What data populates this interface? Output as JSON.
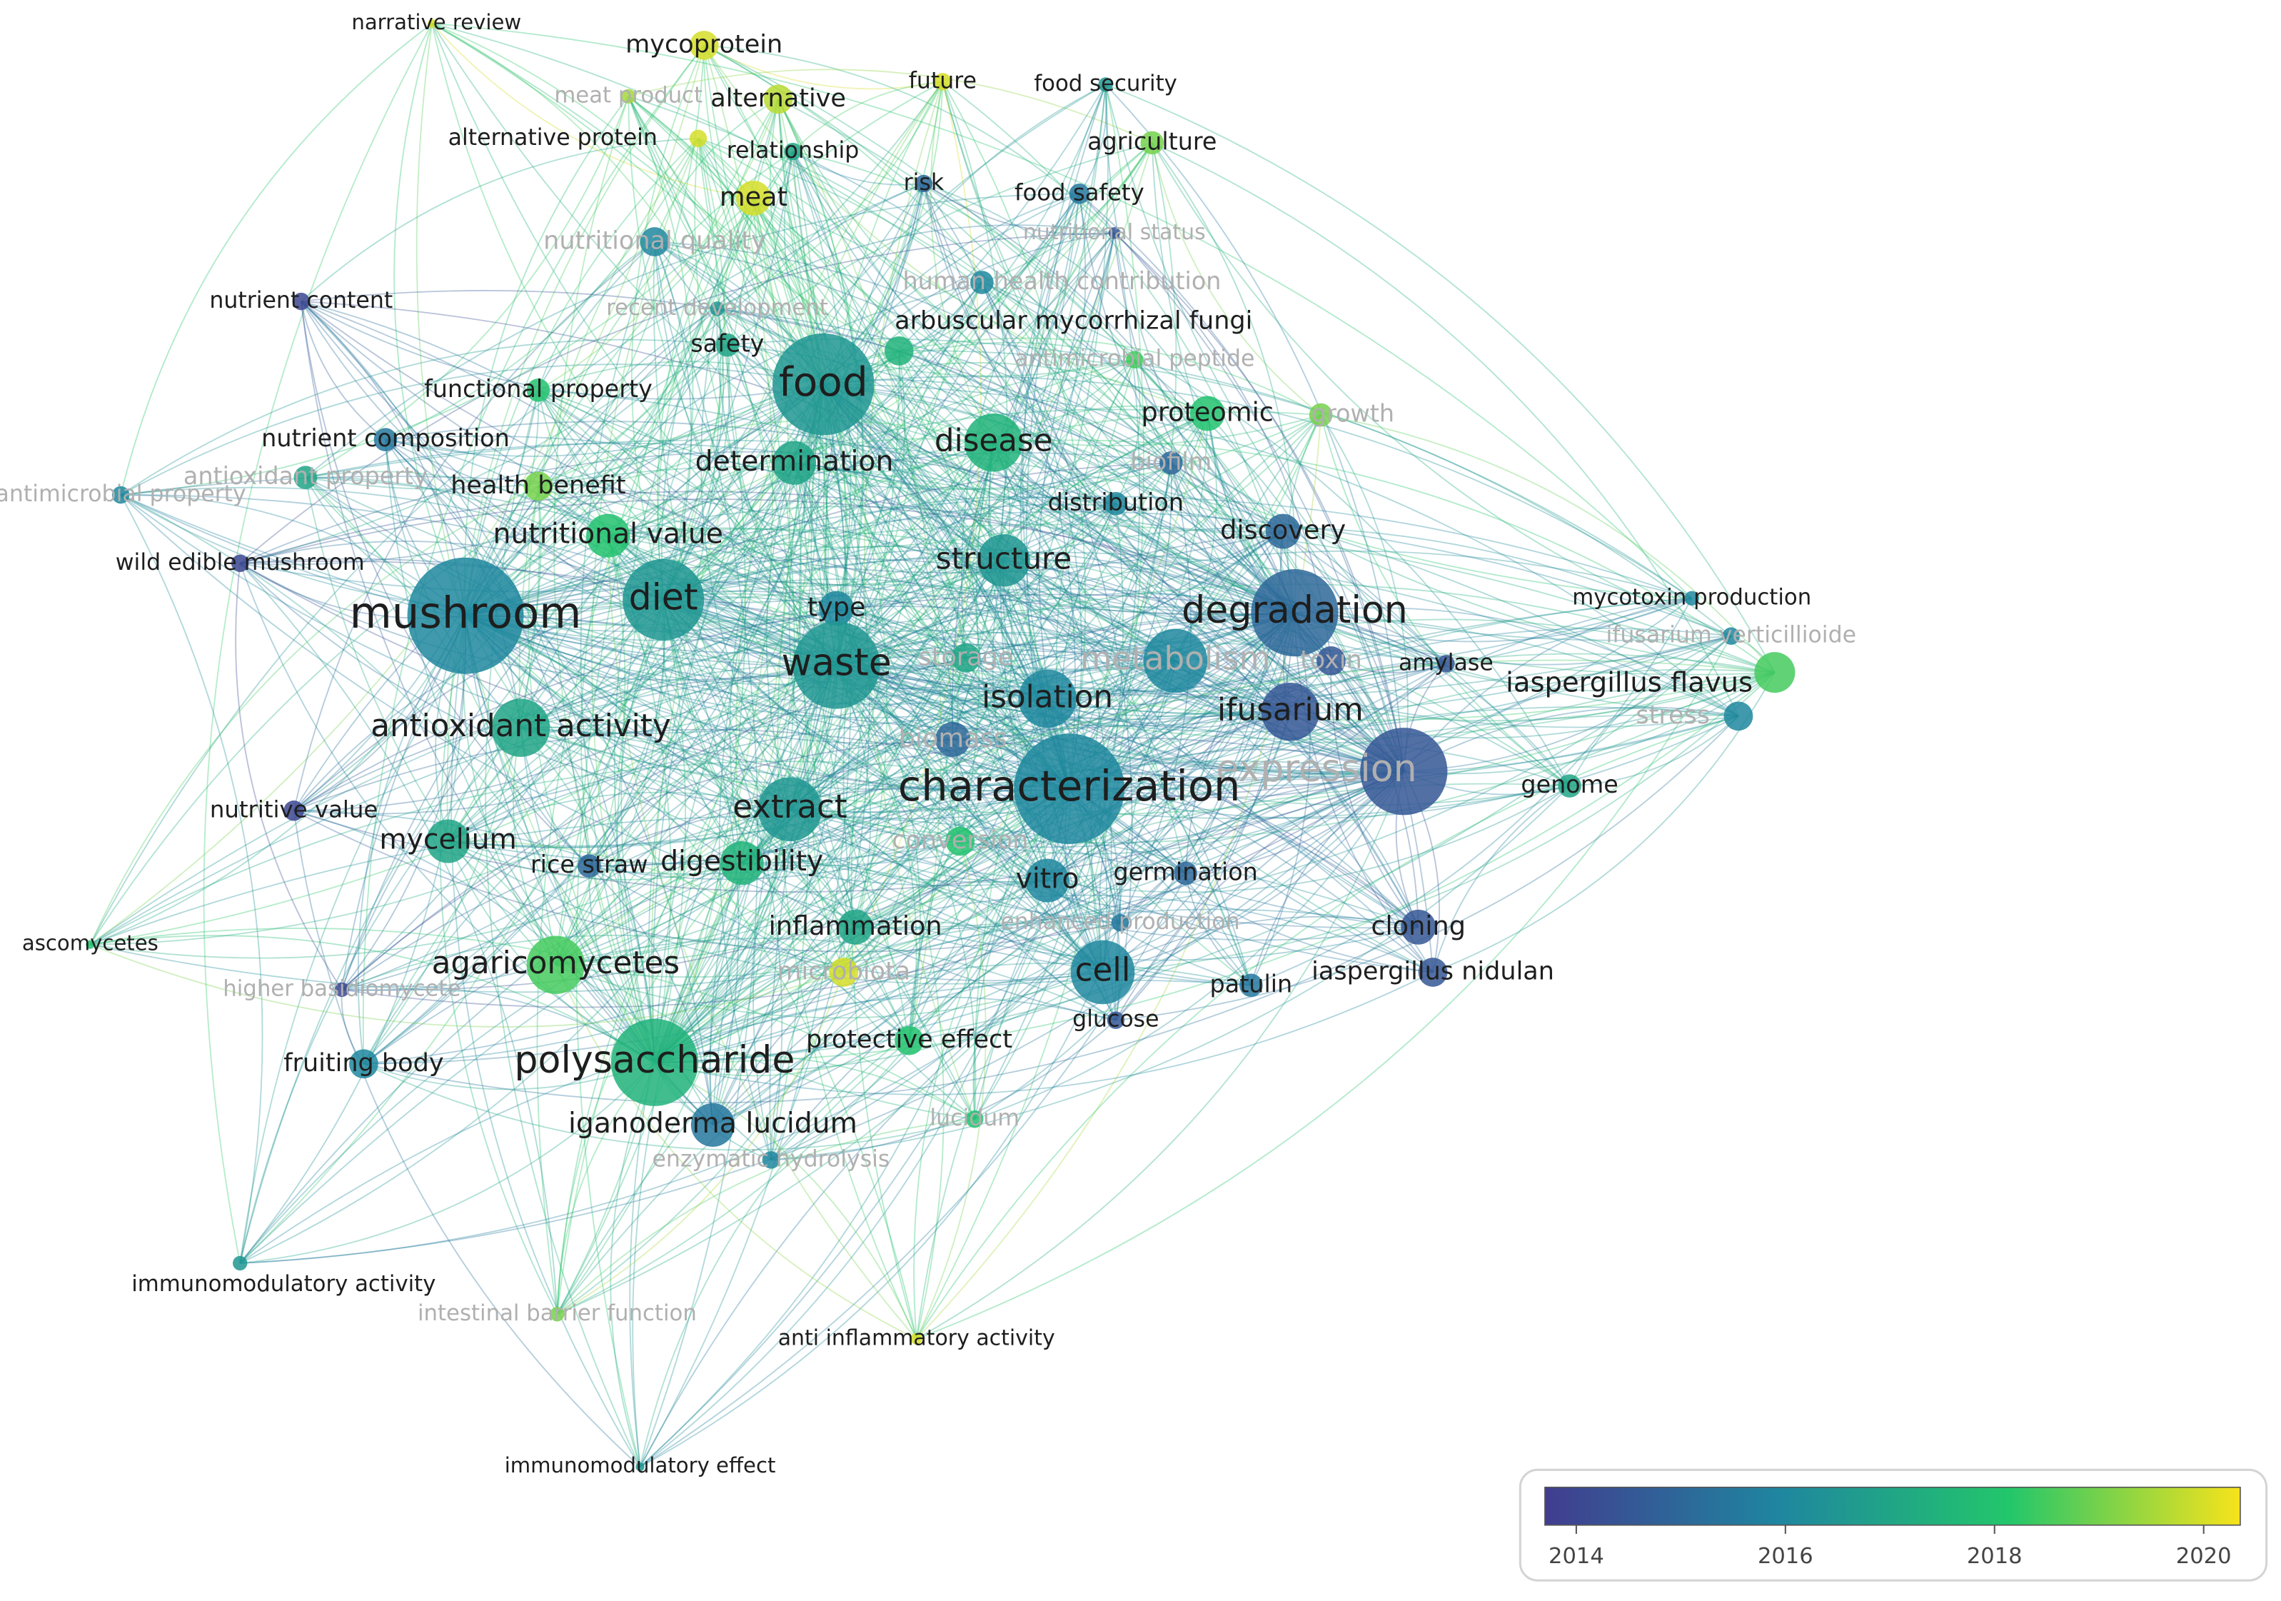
{
  "nodes": [
    {
      "label": "narrative review",
      "year": 2020,
      "weight": 3
    },
    {
      "label": "mycoprotein",
      "year": 2020,
      "weight": 10
    },
    {
      "label": "meat product",
      "year": 2019.5,
      "weight": 5,
      "dim": true
    },
    {
      "label": "alternative",
      "year": 2019.7,
      "weight": 10
    },
    {
      "label": "future",
      "year": 2020,
      "weight": 6
    },
    {
      "label": "food security",
      "year": 2016.5,
      "weight": 5
    },
    {
      "label": "alternative protein",
      "year": 2020,
      "weight": 6
    },
    {
      "label": "relationship",
      "year": 2017,
      "weight": 6
    },
    {
      "label": "agriculture",
      "year": 2019,
      "weight": 8
    },
    {
      "label": "meat",
      "year": 2020,
      "weight": 12
    },
    {
      "label": "risk",
      "year": 2015,
      "weight": 6
    },
    {
      "label": "food safety",
      "year": 2015.5,
      "weight": 7
    },
    {
      "label": "nutritional quality",
      "year": 2016,
      "weight": 10,
      "dim": true
    },
    {
      "label": "nutritional status",
      "year": 2014.5,
      "weight": 4,
      "dim": true
    },
    {
      "label": "human health contribution",
      "year": 2016,
      "weight": 8,
      "dim": true
    },
    {
      "label": "nutrient content",
      "year": 2014,
      "weight": 6
    },
    {
      "label": "recent development",
      "year": 2016.5,
      "weight": 5,
      "dim": true
    },
    {
      "label": "arbuscular mycorrhizal fungi",
      "year": 2017.5,
      "weight": 10
    },
    {
      "label": "safety",
      "year": 2017,
      "weight": 8
    },
    {
      "label": "antimicrobial peptide",
      "year": 2018.5,
      "weight": 6,
      "dim": true
    },
    {
      "label": "food",
      "year": 2016.5,
      "weight": 35
    },
    {
      "label": "functional property",
      "year": 2018,
      "weight": 8
    },
    {
      "label": "proteomic",
      "year": 2018,
      "weight": 12
    },
    {
      "label": "growth",
      "year": 2019,
      "weight": 8,
      "dim": true
    },
    {
      "label": "nutrient composition",
      "year": 2015.5,
      "weight": 8
    },
    {
      "label": "disease",
      "year": 2017.5,
      "weight": 20
    },
    {
      "label": "antioxidant property",
      "year": 2017,
      "weight": 8,
      "dim": true
    },
    {
      "label": "antimicrobial property",
      "year": 2016,
      "weight": 6,
      "dim": true
    },
    {
      "label": "health benefit",
      "year": 2019,
      "weight": 10
    },
    {
      "label": "determination",
      "year": 2017,
      "weight": 15
    },
    {
      "label": "biofilm",
      "year": 2015,
      "weight": 8,
      "dim": true
    },
    {
      "label": "distribution",
      "year": 2016,
      "weight": 8
    },
    {
      "label": "nutritional value",
      "year": 2018,
      "weight": 15
    },
    {
      "label": "discovery",
      "year": 2015,
      "weight": 12
    },
    {
      "label": "wild edible mushroom",
      "year": 2014,
      "weight": 6
    },
    {
      "label": "structure",
      "year": 2016.5,
      "weight": 18
    },
    {
      "label": "mycotoxin production",
      "year": 2016,
      "weight": 5
    },
    {
      "label": "mushroom",
      "year": 2016,
      "weight": 40
    },
    {
      "label": "diet",
      "year": 2016.5,
      "weight": 28
    },
    {
      "label": "type",
      "year": 2016,
      "weight": 12
    },
    {
      "label": "degradation",
      "year": 2015,
      "weight": 30
    },
    {
      "label": "ifusarium verticillioide",
      "year": 2016,
      "weight": 6,
      "dim": true
    },
    {
      "label": "metabolism",
      "year": 2016,
      "weight": 22,
      "dim": true
    },
    {
      "label": "toxin",
      "year": 2014.5,
      "weight": 10,
      "dim": true
    },
    {
      "label": "storage",
      "year": 2017,
      "weight": 10,
      "dim": true
    },
    {
      "label": "waste",
      "year": 2016.5,
      "weight": 30
    },
    {
      "label": "amylase",
      "year": 2014.5,
      "weight": 6
    },
    {
      "label": "iaspergillus flavus",
      "year": 2018.5,
      "weight": 14
    },
    {
      "label": "isolation",
      "year": 2016,
      "weight": 20
    },
    {
      "label": "ifusarium",
      "year": 2014.5,
      "weight": 20
    },
    {
      "label": "stress",
      "year": 2016,
      "weight": 10,
      "dim": true
    },
    {
      "label": "antioxidant activity",
      "year": 2017,
      "weight": 20
    },
    {
      "label": "biomass",
      "year": 2015,
      "weight": 12,
      "dim": true
    },
    {
      "label": "expression",
      "year": 2014.5,
      "weight": 30,
      "dim": true
    },
    {
      "label": "characterization",
      "year": 2016,
      "weight": 38
    },
    {
      "label": "extract",
      "year": 2016.5,
      "weight": 22
    },
    {
      "label": "genome",
      "year": 2017,
      "weight": 8
    },
    {
      "label": "nutritive value",
      "year": 2014,
      "weight": 7
    },
    {
      "label": "mycelium",
      "year": 2017,
      "weight": 15
    },
    {
      "label": "conversion",
      "year": 2018,
      "weight": 10,
      "dim": true
    },
    {
      "label": "rice straw",
      "year": 2015,
      "weight": 8
    },
    {
      "label": "digestibility",
      "year": 2017.5,
      "weight": 15
    },
    {
      "label": "vitro",
      "year": 2016,
      "weight": 15
    },
    {
      "label": "germination",
      "year": 2015,
      "weight": 8
    },
    {
      "label": "cloning",
      "year": 2014.5,
      "weight": 12
    },
    {
      "label": "inflammation",
      "year": 2017,
      "weight": 12
    },
    {
      "label": "enhanced production",
      "year": 2015.5,
      "weight": 6,
      "dim": true
    },
    {
      "label": "ascomycetes",
      "year": 2018,
      "weight": 3
    },
    {
      "label": "agaricomycetes",
      "year": 2018.5,
      "weight": 20
    },
    {
      "label": "cell",
      "year": 2016,
      "weight": 22
    },
    {
      "label": "microbiota",
      "year": 2020,
      "weight": 10,
      "dim": true
    },
    {
      "label": "iaspergillus nidulan",
      "year": 2014.5,
      "weight": 10
    },
    {
      "label": "patulin",
      "year": 2015.5,
      "weight": 8
    },
    {
      "label": "higher basidiomycete",
      "year": 2014,
      "weight": 5,
      "dim": true
    },
    {
      "label": "glucose",
      "year": 2014.5,
      "weight": 6
    },
    {
      "label": "protective effect",
      "year": 2018,
      "weight": 10
    },
    {
      "label": "fruiting body",
      "year": 2016,
      "weight": 10
    },
    {
      "label": "polysaccharide",
      "year": 2017.5,
      "weight": 30
    },
    {
      "label": "iganoderma lucidum",
      "year": 2015.5,
      "weight": 15
    },
    {
      "label": "lucidum",
      "year": 2018,
      "weight": 6,
      "dim": true
    },
    {
      "label": "enzymatic hydrolysis",
      "year": 2016,
      "weight": 6,
      "dim": true
    },
    {
      "label": "immunomodulatory activity",
      "year": 2016.5,
      "weight": 5
    },
    {
      "label": "intestinal barrier function",
      "year": 2019,
      "weight": 5,
      "dim": true
    },
    {
      "label": "anti inflammatory activity",
      "year": 2020,
      "weight": 4
    },
    {
      "label": "immunomodulatory effect",
      "year": 2016.5,
      "weight": 3
    }
  ],
  "legend": {
    "range": [
      2013.7,
      2020.35
    ],
    "ticks": [
      2014,
      2016,
      2018,
      2020
    ],
    "colormap": [
      "#413d8f",
      "#1f85a0",
      "#22c66b",
      "#f7e31b"
    ]
  }
}
